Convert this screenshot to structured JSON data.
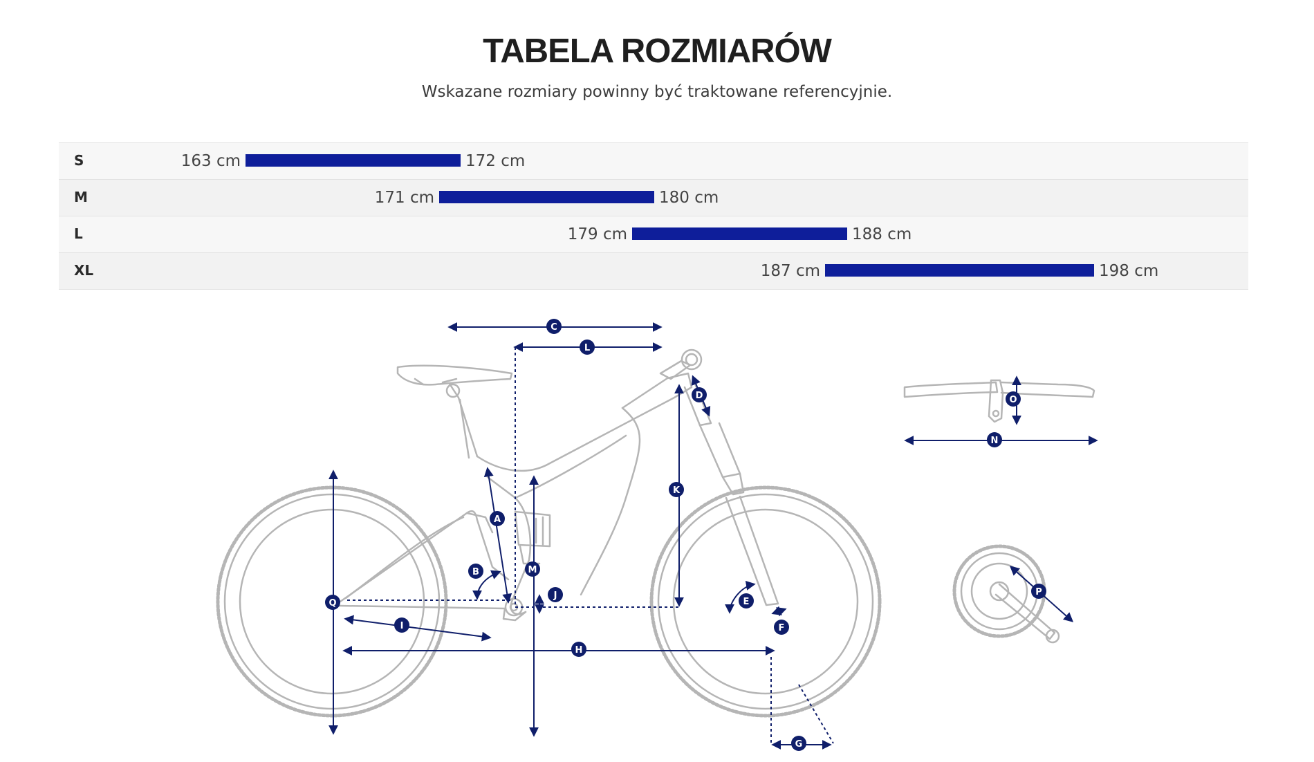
{
  "header": {
    "title": "TABELA ROZMIARÓW",
    "subtitle": "Wskazane rozmiary powinny być traktowane referencyjnie."
  },
  "size_table": {
    "rows": [
      {
        "size": "S",
        "min_label": "163 cm",
        "max_label": "172 cm",
        "min_cm": 163,
        "max_cm": 172
      },
      {
        "size": "M",
        "min_label": "171 cm",
        "max_label": "180 cm",
        "min_cm": 171,
        "max_cm": 180
      },
      {
        "size": "L",
        "min_label": "179 cm",
        "max_label": "188 cm",
        "min_cm": 179,
        "max_cm": 188
      },
      {
        "size": "XL",
        "min_label": "187 cm",
        "max_label": "198 cm",
        "min_cm": 187,
        "max_cm": 198
      }
    ],
    "bar_color": "#0e1e9a"
  },
  "geometry_diagram": {
    "line_color": "#b5b5b5",
    "marker_color": "#0f1e6a",
    "labels": [
      "A",
      "B",
      "C",
      "D",
      "E",
      "F",
      "G",
      "H",
      "I",
      "J",
      "K",
      "L",
      "M",
      "N",
      "O",
      "P",
      "Q"
    ]
  }
}
